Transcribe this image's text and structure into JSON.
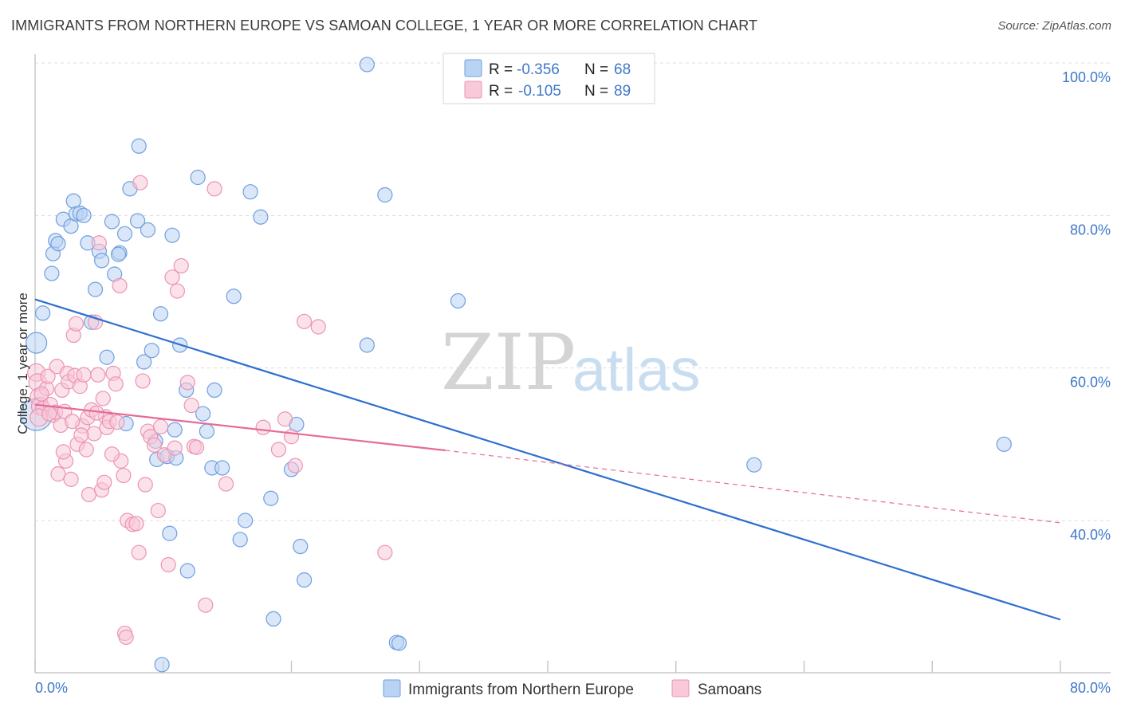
{
  "title": "IMMIGRANTS FROM NORTHERN EUROPE VS SAMOAN COLLEGE, 1 YEAR OR MORE CORRELATION CHART",
  "source": "Source: ZipAtlas.com",
  "watermark": {
    "zip": "ZIP",
    "atlas": "atlas"
  },
  "chart_data": {
    "type": "scatter",
    "title": "IMMIGRANTS FROM NORTHERN EUROPE VS SAMOAN COLLEGE, 1 YEAR OR MORE CORRELATION CHART",
    "xlabel": "",
    "ylabel": "College, 1 year or more",
    "xlim": [
      0,
      80
    ],
    "ylim": [
      20,
      100
    ],
    "x_tick_labels": [
      "0.0%",
      "80.0%"
    ],
    "y_ticks": [
      40,
      60,
      80,
      100
    ],
    "y_tick_labels": [
      "40.0%",
      "60.0%",
      "80.0%",
      "100.0%"
    ],
    "legend": [
      {
        "r_label": "R =",
        "r_value": "-0.356",
        "n_label": "N =",
        "n_value": "68"
      },
      {
        "r_label": "R =",
        "r_value": "-0.105",
        "n_label": "N =",
        "n_value": "89"
      }
    ],
    "series": [
      {
        "name": "Immigrants from Northern Europe",
        "color": "#6f9fe0",
        "fill": "#b9d3f3",
        "trend_color": "#2e6fcf",
        "trend": {
          "x0": 0,
          "y0": 69.0,
          "x1": 80,
          "y1": 27.0
        },
        "points": [
          [
            25.9,
            99.8
          ],
          [
            0.6,
            67.2
          ],
          [
            0.1,
            63.3
          ],
          [
            0.1,
            53.9
          ],
          [
            1.3,
            72.4
          ],
          [
            1.4,
            75.0
          ],
          [
            1.6,
            76.7
          ],
          [
            1.8,
            76.3
          ],
          [
            2.2,
            79.5
          ],
          [
            2.8,
            78.6
          ],
          [
            3.0,
            81.9
          ],
          [
            3.2,
            80.2
          ],
          [
            3.5,
            80.3
          ],
          [
            3.8,
            80.0
          ],
          [
            4.1,
            76.4
          ],
          [
            5.0,
            75.3
          ],
          [
            5.2,
            74.1
          ],
          [
            4.7,
            70.3
          ],
          [
            4.4,
            66.0
          ],
          [
            6.0,
            79.2
          ],
          [
            5.6,
            61.4
          ],
          [
            6.2,
            72.3
          ],
          [
            6.6,
            75.1
          ],
          [
            6.5,
            74.9
          ],
          [
            7.0,
            77.6
          ],
          [
            7.4,
            83.5
          ],
          [
            8.0,
            79.3
          ],
          [
            8.1,
            89.1
          ],
          [
            8.5,
            60.8
          ],
          [
            8.8,
            78.1
          ],
          [
            9.1,
            62.3
          ],
          [
            9.4,
            50.4
          ],
          [
            9.5,
            48.0
          ],
          [
            9.8,
            67.1
          ],
          [
            10.3,
            48.4
          ],
          [
            10.5,
            38.3
          ],
          [
            10.7,
            77.4
          ],
          [
            10.9,
            51.9
          ],
          [
            11.0,
            48.2
          ],
          [
            11.3,
            63.0
          ],
          [
            11.8,
            57.1
          ],
          [
            11.9,
            33.4
          ],
          [
            12.7,
            85.0
          ],
          [
            13.1,
            54.0
          ],
          [
            13.4,
            51.7
          ],
          [
            13.8,
            46.9
          ],
          [
            14.0,
            57.1
          ],
          [
            14.6,
            46.9
          ],
          [
            15.5,
            69.4
          ],
          [
            16.0,
            37.5
          ],
          [
            16.4,
            40.0
          ],
          [
            16.8,
            83.1
          ],
          [
            17.6,
            79.8
          ],
          [
            18.4,
            42.9
          ],
          [
            18.6,
            27.1
          ],
          [
            20.0,
            46.7
          ],
          [
            20.4,
            52.6
          ],
          [
            20.7,
            36.6
          ],
          [
            21.0,
            32.2
          ],
          [
            25.9,
            63.0
          ],
          [
            27.3,
            82.7
          ],
          [
            28.2,
            24.0
          ],
          [
            28.4,
            23.9
          ],
          [
            33.0,
            68.8
          ],
          [
            56.1,
            47.3
          ],
          [
            75.6,
            50.0
          ],
          [
            9.9,
            21.1
          ],
          [
            7.1,
            52.7
          ]
        ]
      },
      {
        "name": "Samoans",
        "color": "#ec94b3",
        "fill": "#f8c9d9",
        "trend_color": "#e66a99",
        "trend": {
          "x0": 0,
          "y0": 55.2,
          "x1": 32,
          "y1": 49.2
        },
        "trend_dashed": {
          "x0": 32,
          "y0": 49.2,
          "x1": 80,
          "y1": 39.7
        },
        "points": [
          [
            0.1,
            59.4
          ],
          [
            0.2,
            58.1
          ],
          [
            0.3,
            56.2
          ],
          [
            0.4,
            55.0
          ],
          [
            0.6,
            54.7
          ],
          [
            0.9,
            57.3
          ],
          [
            1.0,
            58.9
          ],
          [
            1.2,
            55.2
          ],
          [
            1.4,
            53.8
          ],
          [
            1.6,
            54.2
          ],
          [
            1.7,
            60.2
          ],
          [
            1.8,
            46.1
          ],
          [
            2.0,
            52.5
          ],
          [
            2.1,
            57.1
          ],
          [
            2.3,
            54.3
          ],
          [
            2.4,
            47.8
          ],
          [
            2.5,
            59.3
          ],
          [
            2.6,
            58.2
          ],
          [
            2.8,
            45.4
          ],
          [
            3.0,
            64.3
          ],
          [
            3.1,
            59.0
          ],
          [
            3.2,
            65.8
          ],
          [
            3.3,
            50.0
          ],
          [
            3.5,
            57.6
          ],
          [
            3.7,
            52.4
          ],
          [
            3.8,
            59.1
          ],
          [
            4.0,
            49.3
          ],
          [
            4.1,
            53.5
          ],
          [
            4.2,
            43.4
          ],
          [
            4.4,
            54.5
          ],
          [
            4.6,
            51.4
          ],
          [
            4.7,
            66.0
          ],
          [
            4.9,
            59.1
          ],
          [
            5.0,
            76.4
          ],
          [
            5.2,
            44.0
          ],
          [
            5.4,
            45.0
          ],
          [
            5.5,
            53.6
          ],
          [
            5.6,
            52.2
          ],
          [
            5.8,
            53.0
          ],
          [
            6.1,
            59.3
          ],
          [
            6.3,
            57.9
          ],
          [
            6.4,
            52.9
          ],
          [
            6.6,
            70.8
          ],
          [
            6.7,
            47.8
          ],
          [
            6.9,
            45.9
          ],
          [
            7.0,
            25.2
          ],
          [
            7.1,
            24.7
          ],
          [
            7.2,
            40.0
          ],
          [
            7.6,
            39.5
          ],
          [
            7.9,
            39.6
          ],
          [
            8.1,
            35.8
          ],
          [
            8.2,
            84.3
          ],
          [
            8.4,
            58.3
          ],
          [
            8.6,
            44.7
          ],
          [
            8.8,
            51.7
          ],
          [
            9.0,
            51.0
          ],
          [
            9.3,
            49.9
          ],
          [
            9.6,
            41.3
          ],
          [
            10.1,
            48.6
          ],
          [
            10.4,
            34.2
          ],
          [
            10.7,
            71.9
          ],
          [
            10.9,
            49.5
          ],
          [
            11.1,
            70.1
          ],
          [
            11.4,
            73.4
          ],
          [
            11.9,
            58.1
          ],
          [
            12.2,
            55.1
          ],
          [
            12.4,
            49.7
          ],
          [
            12.6,
            49.6
          ],
          [
            13.3,
            28.9
          ],
          [
            14.0,
            83.5
          ],
          [
            14.9,
            44.8
          ],
          [
            17.8,
            52.2
          ],
          [
            19.0,
            49.3
          ],
          [
            19.5,
            53.3
          ],
          [
            20.0,
            51.0
          ],
          [
            20.3,
            47.2
          ],
          [
            21.0,
            66.1
          ],
          [
            22.1,
            65.4
          ],
          [
            27.3,
            35.8
          ],
          [
            0.3,
            53.5
          ],
          [
            0.5,
            56.6
          ],
          [
            1.1,
            54.0
          ],
          [
            2.9,
            53.0
          ],
          [
            4.8,
            54.1
          ],
          [
            6.0,
            48.7
          ],
          [
            3.6,
            51.2
          ],
          [
            2.2,
            49.0
          ],
          [
            9.8,
            52.3
          ],
          [
            5.3,
            56.0
          ]
        ]
      }
    ]
  }
}
